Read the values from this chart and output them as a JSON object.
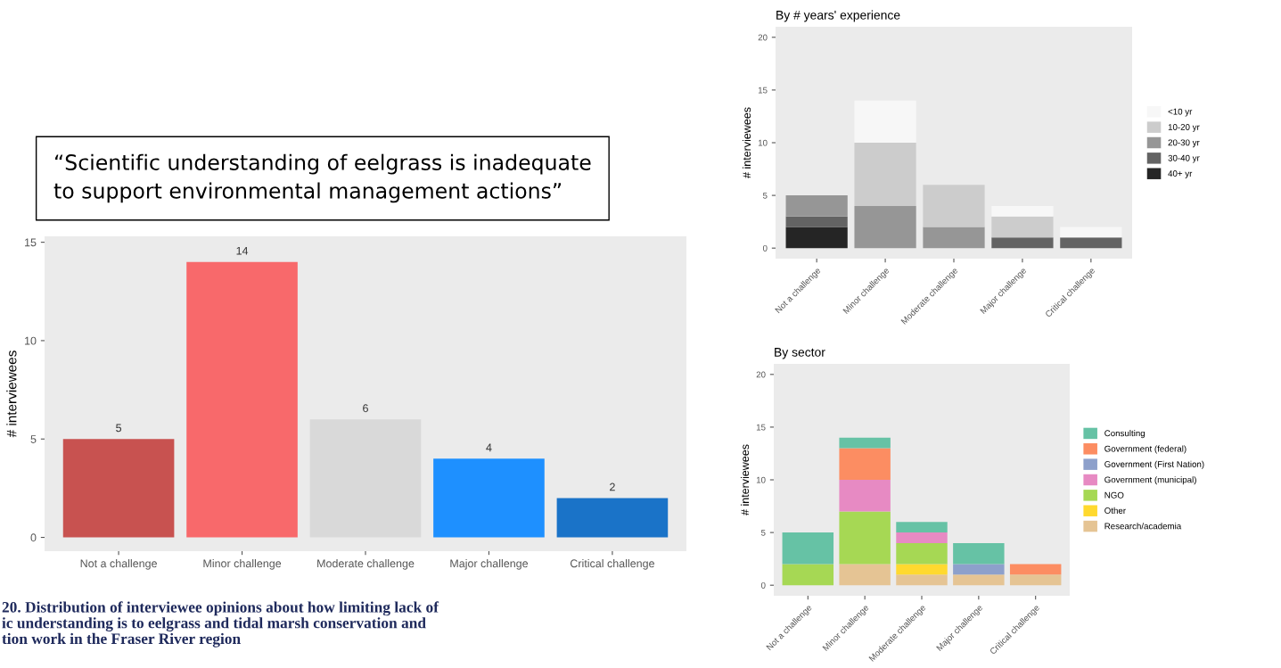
{
  "chart_data": [
    {
      "type": "bar",
      "categories": [
        "Not a challenge",
        "Minor challenge",
        "Moderate challenge",
        "Major challenge",
        "Critical challenge"
      ],
      "values": [
        5,
        14,
        6,
        4,
        2
      ],
      "colors": [
        "#c85250",
        "#f8696b",
        "#d9d9d9",
        "#1e90ff",
        "#1a73c8"
      ],
      "ylabel": "# interviewees",
      "ylim": [
        -0.7,
        15.3
      ],
      "yticks": [
        0,
        5,
        10,
        15
      ],
      "data_labels": true,
      "annotations": [
        "“Scientific understanding of eelgrass is inadequate\nto support environmental management actions”",
        "20. Distribution of interviewee opinions about how limiting lack of\nic understanding is to eelgrass and tidal marsh conservation and\ntion work in the Fraser River region"
      ]
    },
    {
      "type": "bar",
      "stacked": true,
      "title": "By # years' experience",
      "ylabel": "# interviewees",
      "categories": [
        "Not a challenge",
        "Minor challenge",
        "Moderate challenge",
        "Major challenge",
        "Critical challenge"
      ],
      "ylim": [
        -1,
        21
      ],
      "yticks": [
        0,
        5,
        10,
        15,
        20
      ],
      "legend": "right",
      "series": [
        {
          "name": "40+ yr",
          "color": "#252525",
          "values": [
            2,
            0,
            0,
            0,
            0
          ]
        },
        {
          "name": "30-40 yr",
          "color": "#636363",
          "values": [
            1,
            0,
            0,
            1,
            1
          ]
        },
        {
          "name": "20-30 yr",
          "color": "#969696",
          "values": [
            2,
            4,
            2,
            0,
            0
          ]
        },
        {
          "name": "10-20 yr",
          "color": "#cccccc",
          "values": [
            0,
            6,
            4,
            2,
            0
          ]
        },
        {
          "name": "<10 yr",
          "color": "#f7f7f7",
          "values": [
            0,
            4,
            0,
            1,
            1
          ]
        }
      ]
    },
    {
      "type": "bar",
      "stacked": true,
      "title": "By sector",
      "ylabel": "# interviewees",
      "categories": [
        "Not a challenge",
        "Minor challenge",
        "Moderate challenge",
        "Major challenge",
        "Critical challenge"
      ],
      "ylim": [
        -1,
        21
      ],
      "yticks": [
        0,
        5,
        10,
        15,
        20
      ],
      "legend": "right",
      "series": [
        {
          "name": "Research/academia",
          "color": "#e5c494",
          "values": [
            0,
            2,
            1,
            1,
            1
          ]
        },
        {
          "name": "Other",
          "color": "#ffd92f",
          "values": [
            0,
            0,
            1,
            0,
            0
          ]
        },
        {
          "name": "NGO",
          "color": "#a6d854",
          "values": [
            2,
            5,
            2,
            0,
            0
          ]
        },
        {
          "name": "Government (municipal)",
          "color": "#e78ac3",
          "values": [
            0,
            3,
            1,
            0,
            0
          ]
        },
        {
          "name": "Government (First Nation)",
          "color": "#8da0cb",
          "values": [
            0,
            0,
            0,
            1,
            0
          ]
        },
        {
          "name": "Government (federal)",
          "color": "#fc8d62",
          "values": [
            0,
            3,
            0,
            0,
            1
          ]
        },
        {
          "name": "Consulting",
          "color": "#66c2a5",
          "values": [
            3,
            1,
            1,
            2,
            0
          ]
        }
      ]
    }
  ]
}
